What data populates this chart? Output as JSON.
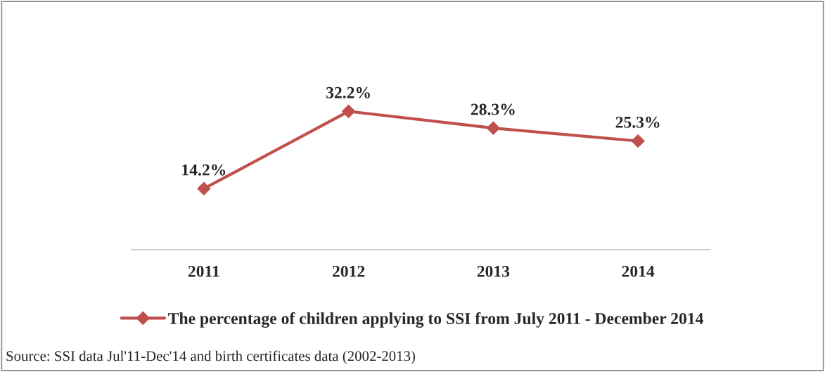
{
  "chart_data": {
    "type": "line",
    "categories": [
      "2011",
      "2012",
      "2013",
      "2014"
    ],
    "series": [
      {
        "name": "The percentage of children applying to SSI from July 2011 - December 2014",
        "color": "#c0504d",
        "values": [
          14.2,
          32.2,
          28.3,
          25.3
        ],
        "value_labels": [
          "14.2%",
          "32.2%",
          "28.3%",
          "25.3%"
        ]
      }
    ],
    "marker": "diamond",
    "legend": "bottom",
    "grid": false,
    "annotations": [
      "Source: SSI data Jul'11-Dec'14 and birth certificates data (2002-2013)"
    ]
  }
}
